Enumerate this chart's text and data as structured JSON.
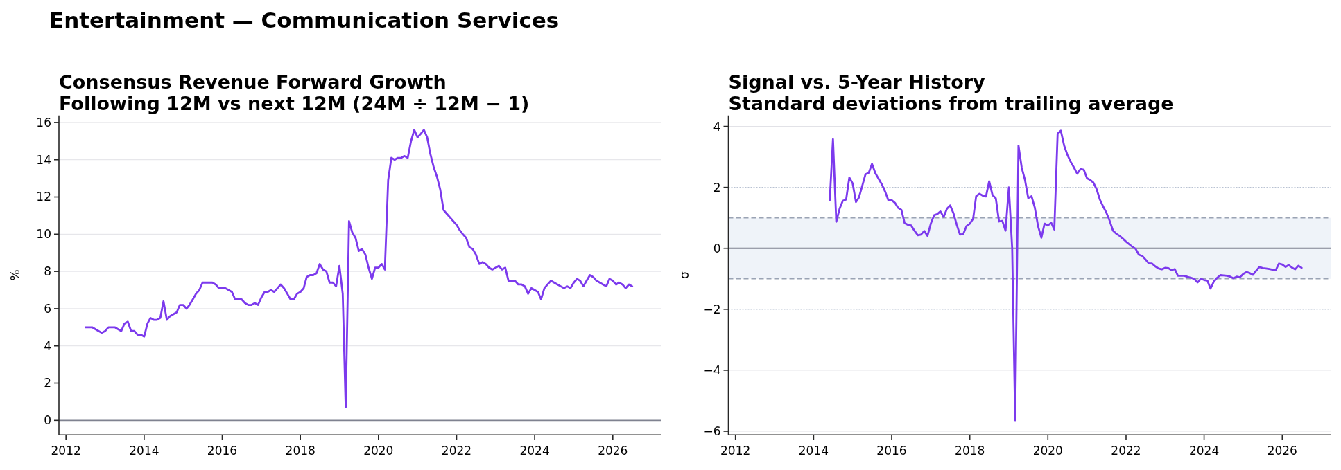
{
  "chart_data": [
    {
      "type": "line",
      "title": "Consensus Revenue Forward Growth",
      "subtitle": "Following 12M vs next 12M (24M ÷ 12M − 1)",
      "ylabel": "%",
      "annotations": [
        "Entertainment — Communication Services"
      ],
      "x": [
        "2012-07",
        "2012-08",
        "2012-09",
        "2012-10",
        "2012-11",
        "2012-12",
        "2013-01",
        "2013-02",
        "2013-03",
        "2013-04",
        "2013-05",
        "2013-06",
        "2013-07",
        "2013-08",
        "2013-09",
        "2013-10",
        "2013-11",
        "2013-12",
        "2014-01",
        "2014-02",
        "2014-03",
        "2014-04",
        "2014-05",
        "2014-06",
        "2014-07",
        "2014-08",
        "2014-09",
        "2014-10",
        "2014-11",
        "2014-12",
        "2015-01",
        "2015-02",
        "2015-03",
        "2015-04",
        "2015-05",
        "2015-06",
        "2015-07",
        "2015-08",
        "2015-09",
        "2015-10",
        "2015-11",
        "2015-12",
        "2016-01",
        "2016-02",
        "2016-03",
        "2016-04",
        "2016-05",
        "2016-06",
        "2016-07",
        "2016-08",
        "2016-09",
        "2016-10",
        "2016-11",
        "2016-12",
        "2017-01",
        "2017-02",
        "2017-03",
        "2017-04",
        "2017-05",
        "2017-06",
        "2017-07",
        "2017-08",
        "2017-09",
        "2017-10",
        "2017-11",
        "2017-12",
        "2018-01",
        "2018-02",
        "2018-03",
        "2018-04",
        "2018-05",
        "2018-06",
        "2018-07",
        "2018-08",
        "2018-09",
        "2018-10",
        "2018-11",
        "2018-12",
        "2019-01",
        "2019-02",
        "2019-03",
        "2019-04",
        "2019-05",
        "2019-06",
        "2019-07",
        "2019-08",
        "2019-09",
        "2019-10",
        "2019-11",
        "2019-12",
        "2020-01",
        "2020-02",
        "2020-03",
        "2020-04",
        "2020-05",
        "2020-06",
        "2020-07",
        "2020-08",
        "2020-09",
        "2020-10",
        "2020-11",
        "2020-12",
        "2021-01",
        "2021-02",
        "2021-03",
        "2021-04",
        "2021-05",
        "2021-06",
        "2021-07",
        "2021-08",
        "2021-09",
        "2021-10",
        "2021-11",
        "2021-12",
        "2022-01",
        "2022-02",
        "2022-03",
        "2022-04",
        "2022-05",
        "2022-06",
        "2022-07",
        "2022-08",
        "2022-09",
        "2022-10",
        "2022-11",
        "2022-12",
        "2023-01",
        "2023-02",
        "2023-03",
        "2023-04",
        "2023-05",
        "2023-06",
        "2023-07",
        "2023-08",
        "2023-09",
        "2023-10",
        "2023-11",
        "2023-12",
        "2024-01",
        "2024-02",
        "2024-03",
        "2024-04",
        "2024-05",
        "2024-06",
        "2024-07",
        "2024-08",
        "2024-09",
        "2024-10",
        "2024-11",
        "2024-12",
        "2025-01",
        "2025-02",
        "2025-03",
        "2025-04",
        "2025-05",
        "2025-06",
        "2025-07",
        "2025-08",
        "2025-09",
        "2025-10",
        "2025-11",
        "2025-12",
        "2026-01",
        "2026-02",
        "2026-03",
        "2026-04",
        "2026-05",
        "2026-06",
        "2026-07"
      ],
      "series": [
        {
          "color": "#7c3aed",
          "values": [
            5.0,
            5.0,
            5.0,
            4.9,
            4.8,
            4.7,
            4.8,
            5.0,
            5.0,
            5.0,
            4.9,
            4.8,
            5.2,
            5.3,
            4.8,
            4.8,
            4.6,
            4.6,
            4.5,
            5.2,
            5.5,
            5.4,
            5.4,
            5.5,
            6.4,
            5.4,
            5.6,
            5.7,
            5.8,
            6.2,
            6.2,
            6.0,
            6.2,
            6.5,
            6.8,
            7.0,
            7.4,
            7.4,
            7.4,
            7.4,
            7.3,
            7.1,
            7.1,
            7.1,
            7.0,
            6.9,
            6.5,
            6.5,
            6.5,
            6.3,
            6.2,
            6.2,
            6.3,
            6.2,
            6.6,
            6.9,
            6.9,
            7.0,
            6.9,
            7.1,
            7.3,
            7.1,
            6.8,
            6.5,
            6.5,
            6.8,
            6.9,
            7.1,
            7.7,
            7.8,
            7.8,
            7.9,
            8.4,
            8.1,
            8.0,
            7.4,
            7.4,
            7.2,
            8.3,
            6.8,
            0.7,
            10.7,
            10.1,
            9.8,
            9.1,
            9.2,
            8.9,
            8.2,
            7.6,
            8.2,
            8.2,
            8.4,
            8.1,
            12.9,
            14.1,
            14.0,
            14.1,
            14.1,
            14.2,
            14.1,
            15.0,
            15.6,
            15.2,
            15.4,
            15.6,
            15.2,
            14.3,
            13.6,
            13.1,
            12.4,
            11.3,
            11.1,
            10.9,
            10.7,
            10.5,
            10.2,
            10.0,
            9.8,
            9.3,
            9.2,
            8.9,
            8.4,
            8.5,
            8.4,
            8.2,
            8.1,
            8.2,
            8.3,
            8.1,
            8.2,
            7.5,
            7.5,
            7.5,
            7.3,
            7.3,
            7.2,
            6.8,
            7.1,
            7.0,
            6.9,
            6.5,
            7.1,
            7.3,
            7.5,
            7.4,
            7.3,
            7.2,
            7.1,
            7.2,
            7.1,
            7.4,
            7.6,
            7.5,
            7.2,
            7.5,
            7.8,
            7.7,
            7.5,
            7.4,
            7.3,
            7.2,
            7.6,
            7.5,
            7.3,
            7.4,
            7.3,
            7.1,
            7.3,
            7.2
          ]
        }
      ],
      "xlim": [
        "2011-10-27",
        "2027-03-29"
      ],
      "xticks": [
        "2012",
        "2014",
        "2016",
        "2018",
        "2020",
        "2022",
        "2024",
        "2026"
      ],
      "ylim": [
        -0.78,
        16.38
      ],
      "yticks": [
        0,
        2,
        4,
        6,
        8,
        10,
        12,
        14,
        16
      ],
      "grid": "y",
      "ref_lines": [
        {
          "axis": "y",
          "value": 0,
          "color": "#7f8290"
        }
      ]
    },
    {
      "type": "line",
      "title": "Signal vs. 5-Year History",
      "subtitle": "Standard deviations from trailing average",
      "ylabel": "σ",
      "x": [
        "2014-06",
        "2014-07",
        "2014-08",
        "2014-09",
        "2014-10",
        "2014-11",
        "2014-12",
        "2015-01",
        "2015-02",
        "2015-03",
        "2015-04",
        "2015-05",
        "2015-06",
        "2015-07",
        "2015-08",
        "2015-09",
        "2015-10",
        "2015-11",
        "2015-12",
        "2016-01",
        "2016-02",
        "2016-03",
        "2016-04",
        "2016-05",
        "2016-06",
        "2016-07",
        "2016-08",
        "2016-09",
        "2016-10",
        "2016-11",
        "2016-12",
        "2017-01",
        "2017-02",
        "2017-03",
        "2017-04",
        "2017-05",
        "2017-06",
        "2017-07",
        "2017-08",
        "2017-09",
        "2017-10",
        "2017-11",
        "2017-12",
        "2018-01",
        "2018-02",
        "2018-03",
        "2018-04",
        "2018-05",
        "2018-06",
        "2018-07",
        "2018-08",
        "2018-09",
        "2018-10",
        "2018-11",
        "2018-12",
        "2019-01",
        "2019-02",
        "2019-03",
        "2019-04",
        "2019-05",
        "2019-06",
        "2019-07",
        "2019-08",
        "2019-09",
        "2019-10",
        "2019-11",
        "2019-12",
        "2020-01",
        "2020-02",
        "2020-03",
        "2020-04",
        "2020-05",
        "2020-06",
        "2020-07",
        "2020-08",
        "2020-09",
        "2020-10",
        "2020-11",
        "2020-12",
        "2021-01",
        "2021-02",
        "2021-03",
        "2021-04",
        "2021-05",
        "2021-06",
        "2021-07",
        "2021-08",
        "2021-09",
        "2021-10",
        "2021-11",
        "2021-12",
        "2022-01",
        "2022-02",
        "2022-03",
        "2022-04",
        "2022-05",
        "2022-06",
        "2022-07",
        "2022-08",
        "2022-09",
        "2022-10",
        "2022-11",
        "2022-12",
        "2023-01",
        "2023-02",
        "2023-03",
        "2023-04",
        "2023-05",
        "2023-06",
        "2023-07",
        "2023-08",
        "2023-09",
        "2023-10",
        "2023-11",
        "2023-12",
        "2024-01",
        "2024-02",
        "2024-03",
        "2024-04",
        "2024-05",
        "2024-06",
        "2024-07",
        "2024-08",
        "2024-09",
        "2024-10",
        "2024-11",
        "2024-12",
        "2025-01",
        "2025-02",
        "2025-03",
        "2025-04",
        "2025-05",
        "2025-06",
        "2025-07",
        "2025-08",
        "2025-09",
        "2025-10",
        "2025-11",
        "2025-12",
        "2026-01",
        "2026-02",
        "2026-03",
        "2026-04",
        "2026-05",
        "2026-06",
        "2026-07"
      ],
      "series": [
        {
          "color": "#7c3aed",
          "values": [
            1.58,
            3.58,
            0.87,
            1.3,
            1.56,
            1.6,
            2.32,
            2.13,
            1.52,
            1.67,
            2.05,
            2.43,
            2.48,
            2.77,
            2.47,
            2.28,
            2.1,
            1.86,
            1.58,
            1.58,
            1.49,
            1.33,
            1.26,
            0.83,
            0.77,
            0.75,
            0.58,
            0.43,
            0.45,
            0.57,
            0.41,
            0.81,
            1.09,
            1.12,
            1.21,
            1.03,
            1.3,
            1.41,
            1.15,
            0.77,
            0.45,
            0.47,
            0.73,
            0.81,
            0.97,
            1.71,
            1.79,
            1.73,
            1.7,
            2.2,
            1.75,
            1.64,
            0.88,
            0.9,
            0.58,
            2.0,
            0.0,
            -5.64,
            3.37,
            2.65,
            2.24,
            1.65,
            1.71,
            1.33,
            0.73,
            0.35,
            0.81,
            0.75,
            0.84,
            0.62,
            3.76,
            3.86,
            3.37,
            3.07,
            2.84,
            2.65,
            2.45,
            2.6,
            2.58,
            2.3,
            2.24,
            2.16,
            1.94,
            1.6,
            1.37,
            1.17,
            0.9,
            0.58,
            0.48,
            0.41,
            0.32,
            0.22,
            0.13,
            0.05,
            -0.02,
            -0.21,
            -0.25,
            -0.36,
            -0.49,
            -0.5,
            -0.59,
            -0.66,
            -0.69,
            -0.64,
            -0.65,
            -0.72,
            -0.68,
            -0.9,
            -0.9,
            -0.9,
            -0.94,
            -0.97,
            -1.0,
            -1.12,
            -1.0,
            -1.04,
            -1.06,
            -1.32,
            -1.09,
            -0.97,
            -0.88,
            -0.89,
            -0.9,
            -0.93,
            -0.98,
            -0.93,
            -0.95,
            -0.84,
            -0.78,
            -0.81,
            -0.87,
            -0.74,
            -0.61,
            -0.65,
            -0.66,
            -0.68,
            -0.7,
            -0.72,
            -0.5,
            -0.53,
            -0.61,
            -0.55,
            -0.63,
            -0.69,
            -0.57,
            -0.64
          ]
        }
      ],
      "xlim": [
        "2011-10-27",
        "2027-03-29"
      ],
      "xticks": [
        "2012",
        "2014",
        "2016",
        "2018",
        "2020",
        "2022",
        "2024",
        "2026"
      ],
      "ylim": [
        -6.12,
        4.36
      ],
      "yticks": [
        {
          "value": -6,
          "label": "−6"
        },
        {
          "value": -4,
          "label": "−4"
        },
        {
          "value": -2,
          "label": "−2"
        },
        0,
        2,
        4
      ],
      "grid": "y",
      "bands": [
        {
          "axis": "y",
          "from": -1,
          "to": 1,
          "color": "#eff3f9"
        }
      ],
      "ref_lines": [
        {
          "axis": "y",
          "value": 0,
          "color": "#7f8290"
        },
        {
          "axis": "y",
          "value": 1,
          "color": "#9aa3b4",
          "line_style": "dashed"
        },
        {
          "axis": "y",
          "value": -1,
          "color": "#9aa3b4",
          "line_style": "dashed"
        },
        {
          "axis": "y",
          "value": 2,
          "color": "#b8c1d2",
          "line_style": "dotted"
        },
        {
          "axis": "y",
          "value": -2,
          "color": "#b8c1d2",
          "line_style": "dotted"
        }
      ]
    }
  ]
}
